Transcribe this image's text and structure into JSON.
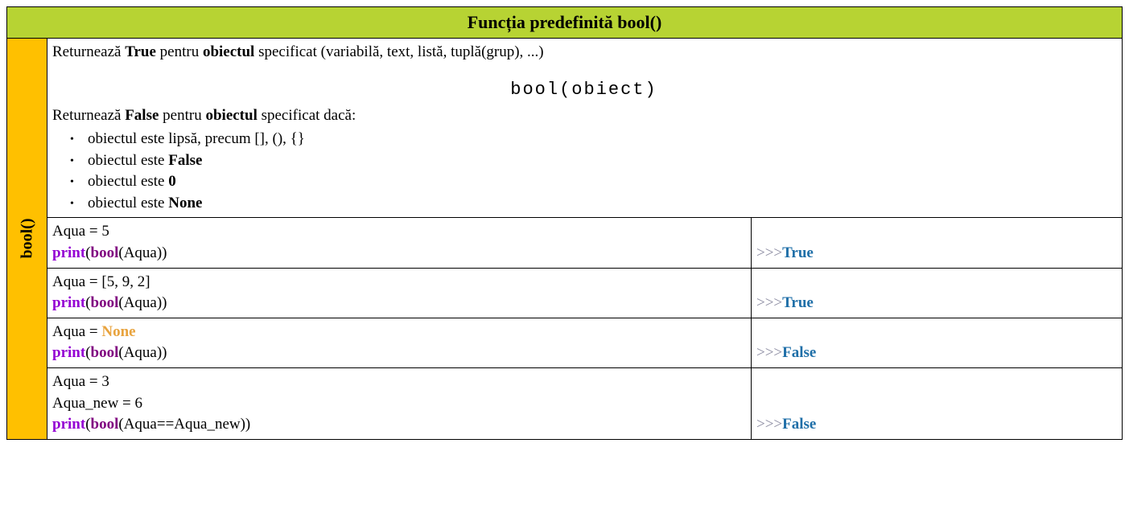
{
  "colors": {
    "header_bg": "#b7d333",
    "side_bg": "#ffc000",
    "border": "#000000",
    "text": "#000000",
    "keyword": "#9400d3",
    "function": "#800080",
    "none_kw": "#e8a33d",
    "prompt": "#8a8aa0",
    "result": "#1f6fa8",
    "background": "#ffffff"
  },
  "header": {
    "title": "Funcția predefinită bool()"
  },
  "side_label": "bool()",
  "description": {
    "line1_pre": "Returnează ",
    "line1_b1": "True",
    "line1_mid": " pentru ",
    "line1_b2": "obiectul",
    "line1_post": " specificat (variabilă, text, listă, tuplă(grup), ...)",
    "syntax": "bool(obiect)",
    "line2_pre": "Returnează ",
    "line2_b1": "False",
    "line2_mid": " pentru ",
    "line2_b2": "obiectul",
    "line2_post": " specificat dacă:",
    "bullets": {
      "b0": {
        "text": "obiectul este lipsă, precum [], (), {}"
      },
      "b1": {
        "pre": "obiectul este ",
        "bold": "False"
      },
      "b2": {
        "pre": "obiectul este ",
        "bold": "0"
      },
      "b3": {
        "pre": "obiectul este ",
        "bold": "None"
      }
    }
  },
  "syntax_tokens": {
    "print": "print",
    "bool": "bool",
    "none": "None"
  },
  "prompt": ">>>",
  "examples": {
    "e0": {
      "line1": "Aqua = 5",
      "arg": "Aqua",
      "result": "True"
    },
    "e1": {
      "line1": "Aqua = [5, 9, 2]",
      "arg": "Aqua",
      "result": "True"
    },
    "e2": {
      "line1_pre": "Aqua = ",
      "arg": "Aqua",
      "result": "False"
    },
    "e3": {
      "line1": "Aqua = 3",
      "line2": "Aqua_new = 6",
      "arg": "Aqua==Aqua_new",
      "result": "False"
    }
  }
}
